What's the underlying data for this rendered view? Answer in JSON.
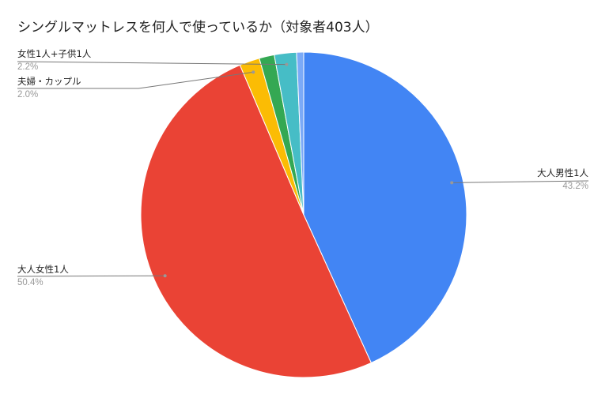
{
  "chart_data": {
    "type": "pie",
    "title": "シングルマットレスを何人で使っているか（対象者403人）",
    "slices": [
      {
        "label": "大人男性1人",
        "value": 43.2,
        "value_label": "43.2%",
        "color": "#4285f4"
      },
      {
        "label": "大人女性1人",
        "value": 50.4,
        "value_label": "50.4%",
        "color": "#ea4335"
      },
      {
        "label": "夫婦・カップル",
        "value": 2.0,
        "value_label": "2.0%",
        "color": "#fbbc04"
      },
      {
        "label": "",
        "value": 1.5,
        "value_label": "",
        "color": "#34a853"
      },
      {
        "label": "女性1人+子供1人",
        "value": 2.2,
        "value_label": "2.2%",
        "color": "#46bdc6"
      },
      {
        "label": "",
        "value": 0.7,
        "value_label": "",
        "color": "#7baaf7"
      }
    ],
    "start_angle": "top",
    "direction": "clockwise",
    "legend": "none"
  }
}
